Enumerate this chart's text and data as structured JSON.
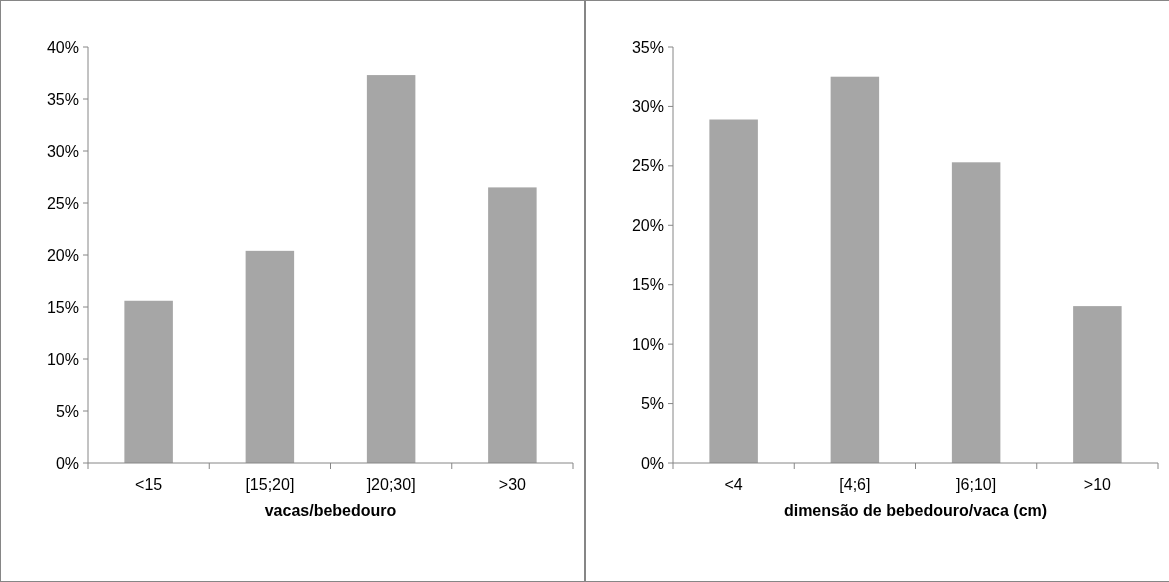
{
  "chart_data": [
    {
      "type": "bar",
      "xlabel": "vacas/bebedouro",
      "categories": [
        "<15",
        "[15;20]",
        "]20;30]",
        ">30"
      ],
      "values": [
        15.6,
        20.4,
        37.3,
        26.5
      ],
      "color": "#a6a6a6",
      "ylim": [
        0,
        40
      ],
      "yticks": [
        {
          "value": 0,
          "label": "0%"
        },
        {
          "value": 5,
          "label": "5%"
        },
        {
          "value": 10,
          "label": "10%"
        },
        {
          "value": 15,
          "label": "15%"
        },
        {
          "value": 20,
          "label": "20%"
        },
        {
          "value": 25,
          "label": "25%"
        },
        {
          "value": 30,
          "label": "30%"
        },
        {
          "value": 35,
          "label": "35%"
        },
        {
          "value": 40,
          "label": "40%"
        }
      ]
    },
    {
      "type": "bar",
      "xlabel": "dimensão de bebedouro/vaca (cm)",
      "categories": [
        "<4",
        "[4;6]",
        "]6;10]",
        ">10"
      ],
      "values": [
        28.9,
        32.5,
        25.3,
        13.2
      ],
      "color": "#a6a6a6",
      "ylim": [
        0,
        35
      ],
      "yticks": [
        {
          "value": 0,
          "label": "0%"
        },
        {
          "value": 5,
          "label": "5%"
        },
        {
          "value": 10,
          "label": "10%"
        },
        {
          "value": 15,
          "label": "15%"
        },
        {
          "value": 20,
          "label": "20%"
        },
        {
          "value": 25,
          "label": "25%"
        },
        {
          "value": 30,
          "label": "30%"
        },
        {
          "value": 35,
          "label": "35%"
        }
      ]
    }
  ]
}
